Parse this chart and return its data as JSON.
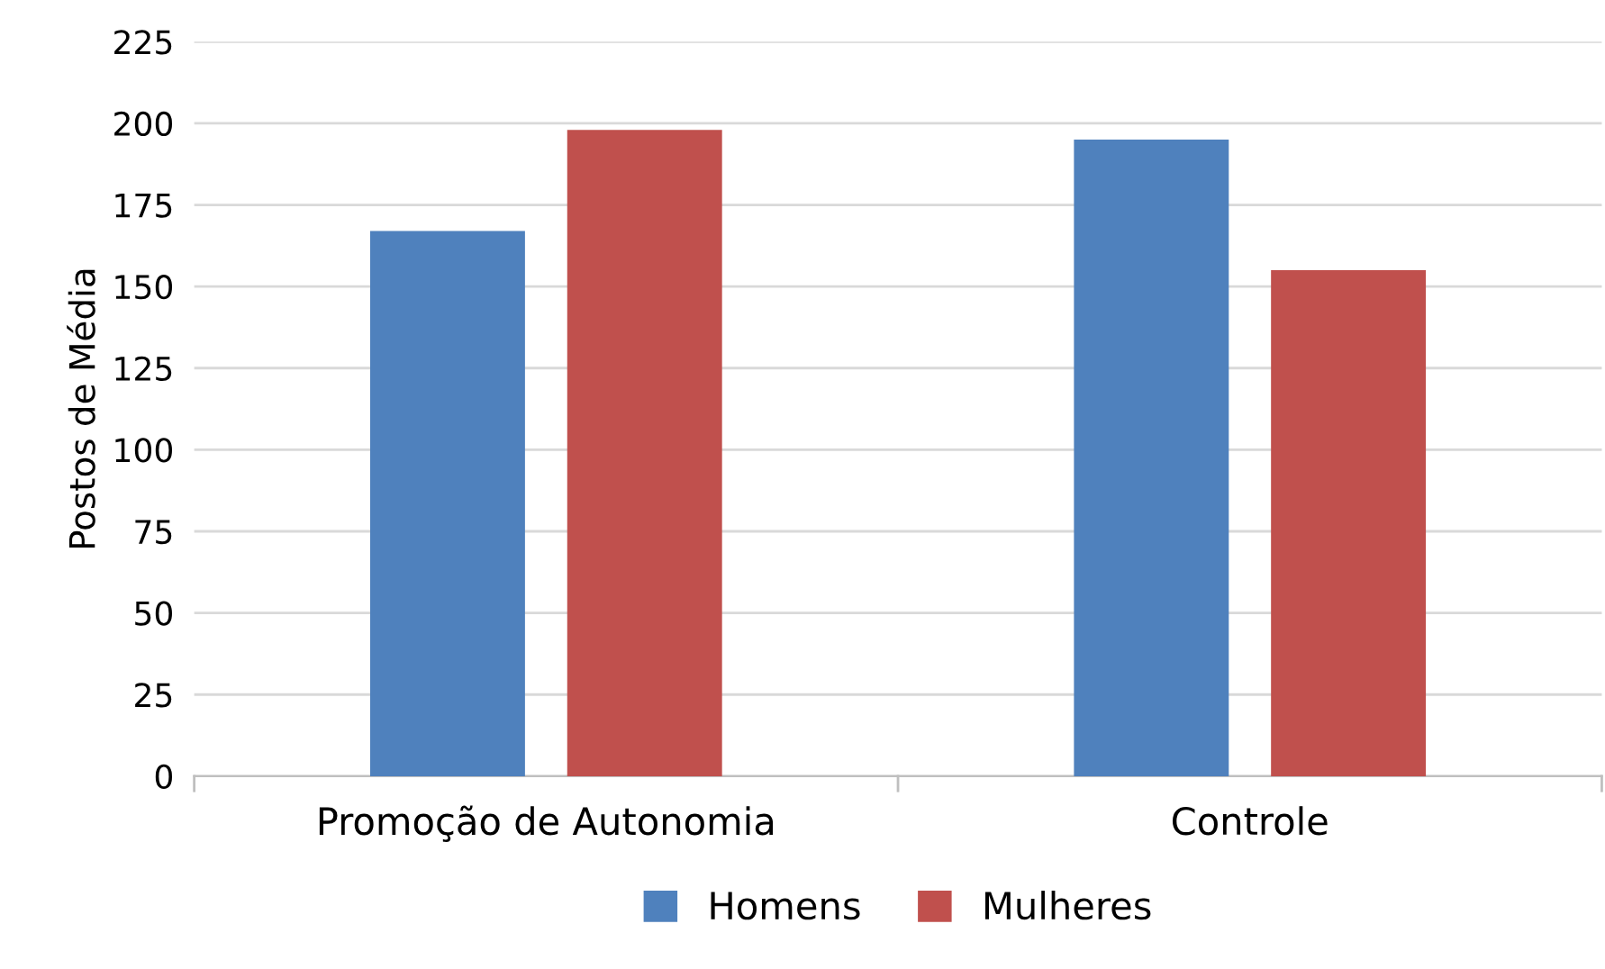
{
  "chart_data": {
    "type": "bar",
    "ylabel": "Postos de Média",
    "categories": [
      "Promoção de Autonomia",
      "Controle"
    ],
    "series": [
      {
        "name": "Homens",
        "color": "#4f81bd",
        "values": [
          167,
          195
        ]
      },
      {
        "name": "Mulheres",
        "color": "#c0504d",
        "values": [
          198,
          155
        ]
      }
    ],
    "ylim": [
      0,
      225
    ],
    "yticks": [
      0,
      25,
      50,
      75,
      100,
      125,
      150,
      175,
      200,
      225
    ],
    "grid": "y",
    "legend": "bottom"
  }
}
